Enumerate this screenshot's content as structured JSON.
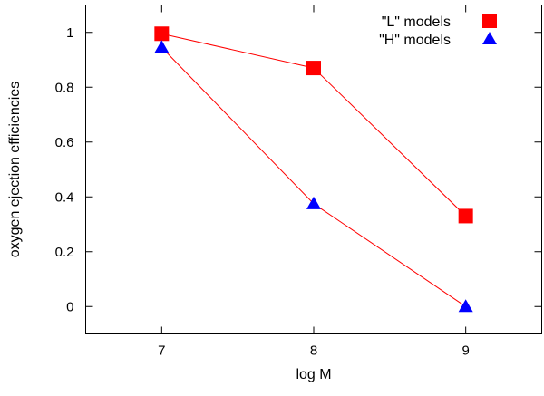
{
  "chart_data": {
    "type": "line",
    "title": "",
    "xlabel": "log M",
    "ylabel": "oxygen ejection efficiencies",
    "xlim": [
      6.5,
      9.5
    ],
    "ylim": [
      -0.1,
      1.1
    ],
    "xticks": [
      7,
      8,
      9
    ],
    "xtick_labels": [
      "7",
      "8",
      "9"
    ],
    "yticks": [
      0,
      0.2,
      0.4,
      0.6,
      0.8,
      1
    ],
    "ytick_labels": [
      "0",
      "0.2",
      "0.4",
      "0.6",
      "0.8",
      "1"
    ],
    "grid": false,
    "legend_position": "top-right",
    "series": [
      {
        "name": "\"L\" models",
        "marker": "square",
        "color": "#ff0000",
        "line_color": "#ff0000",
        "x": [
          7,
          8,
          9
        ],
        "y": [
          0.995,
          0.87,
          0.33
        ]
      },
      {
        "name": "\"H\" models",
        "marker": "triangle",
        "color": "#0000ff",
        "line_color": "#ff0000",
        "x": [
          7,
          8,
          9
        ],
        "y": [
          0.945,
          0.375,
          0.0
        ]
      }
    ]
  }
}
